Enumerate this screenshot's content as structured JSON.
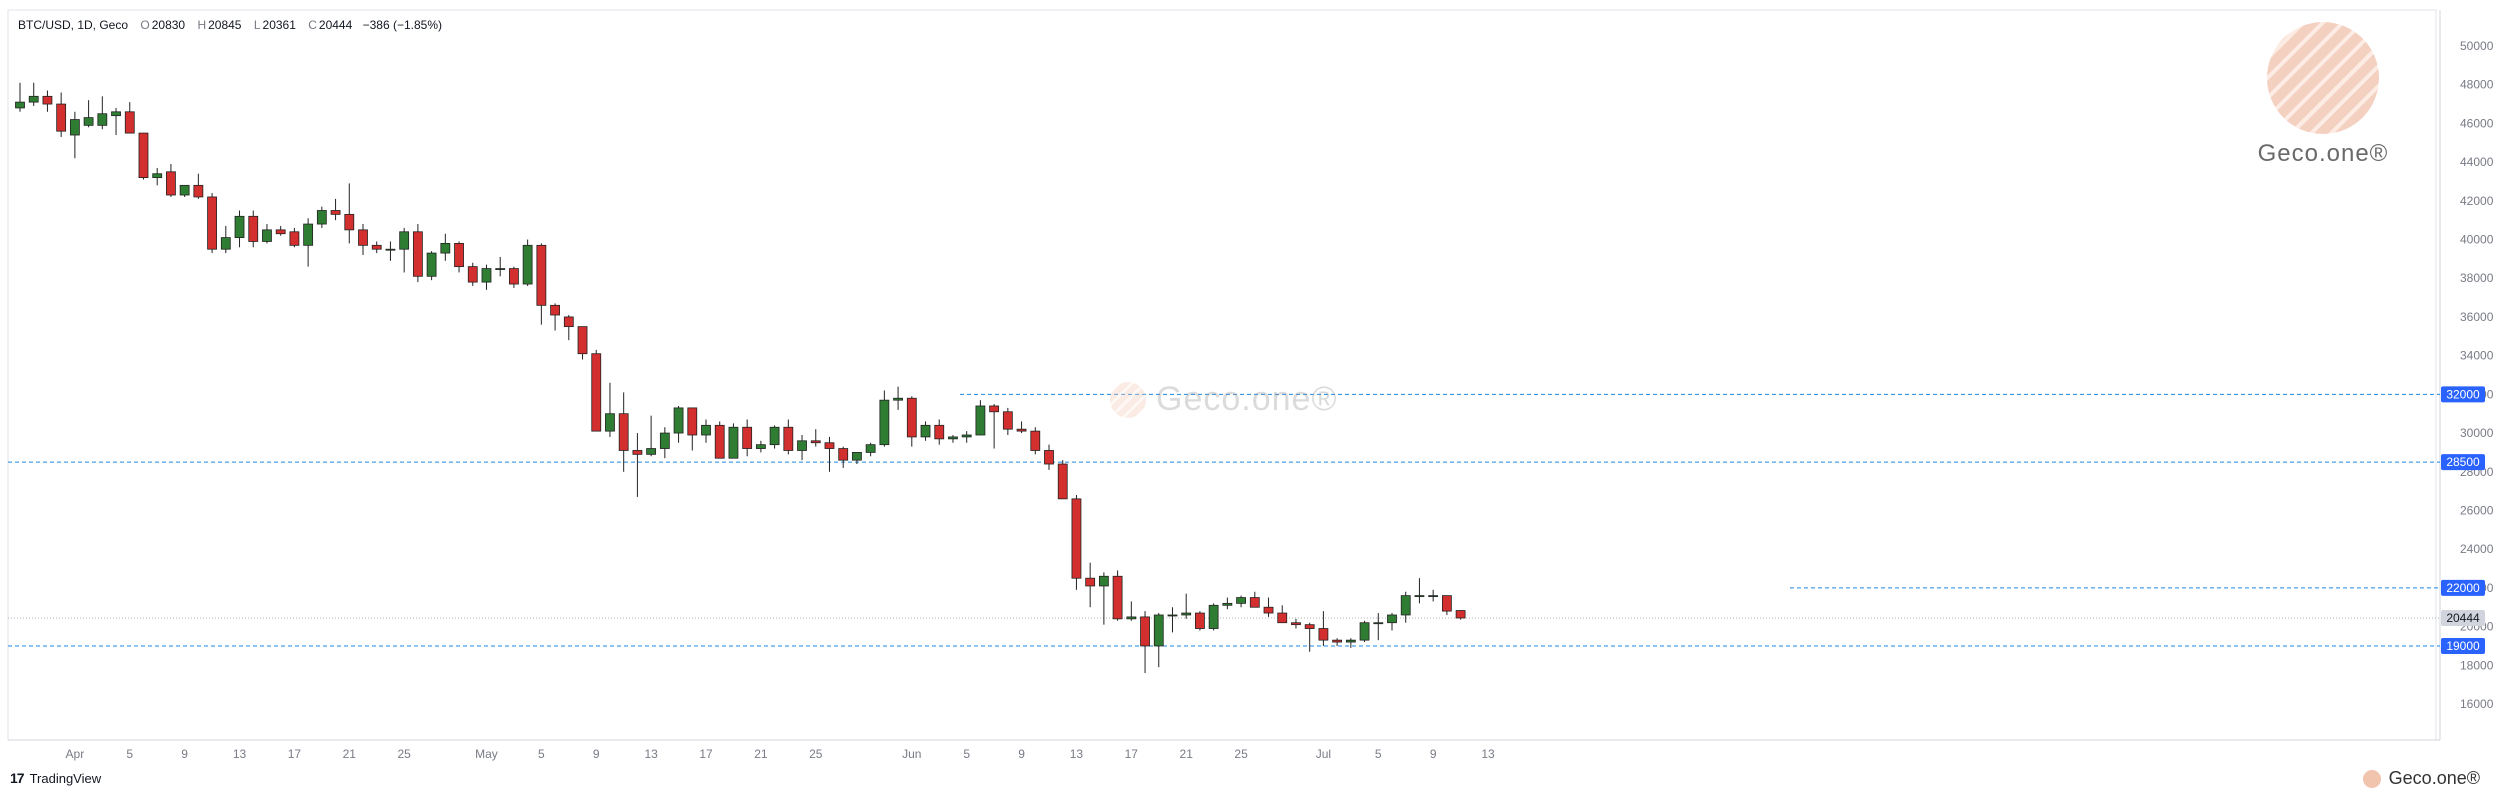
{
  "header": {
    "symbol": "BTC/USD, 1D, Geco",
    "o_label": "O",
    "o": "20830",
    "h_label": "H",
    "h": "20845",
    "l_label": "L",
    "l": "20361",
    "c_label": "C",
    "c": "20444",
    "change": "−386 (−1.85%)"
  },
  "footer": {
    "logo": "17",
    "label": "TradingView"
  },
  "watermark": {
    "brand": "Geco.one®",
    "center": "Geco.one®"
  },
  "colors": {
    "up": "#2e7d32",
    "down": "#d32f2f",
    "level_line": "#1e88e5",
    "level_badge": "#2962ff",
    "price_badge": "#d1d4dc"
  },
  "chart_data": {
    "type": "candlestick",
    "title": "BTC/USD, 1D, Geco",
    "y_range": [
      14000,
      51000
    ],
    "y_ticks": [
      16000,
      18000,
      20000,
      22000,
      24000,
      26000,
      28000,
      30000,
      32000,
      34000,
      36000,
      38000,
      40000,
      42000,
      44000,
      46000,
      48000,
      50000
    ],
    "x_labels": [
      {
        "date": "2022-04-01",
        "label": "Apr"
      },
      {
        "date": "2022-04-05",
        "label": "5"
      },
      {
        "date": "2022-04-09",
        "label": "9"
      },
      {
        "date": "2022-04-13",
        "label": "13"
      },
      {
        "date": "2022-04-17",
        "label": "17"
      },
      {
        "date": "2022-04-21",
        "label": "21"
      },
      {
        "date": "2022-04-25",
        "label": "25"
      },
      {
        "date": "2022-05-01",
        "label": "May"
      },
      {
        "date": "2022-05-05",
        "label": "5"
      },
      {
        "date": "2022-05-09",
        "label": "9"
      },
      {
        "date": "2022-05-13",
        "label": "13"
      },
      {
        "date": "2022-05-17",
        "label": "17"
      },
      {
        "date": "2022-05-21",
        "label": "21"
      },
      {
        "date": "2022-05-25",
        "label": "25"
      },
      {
        "date": "2022-06-01",
        "label": "Jun"
      },
      {
        "date": "2022-06-05",
        "label": "5"
      },
      {
        "date": "2022-06-09",
        "label": "9"
      },
      {
        "date": "2022-06-13",
        "label": "13"
      },
      {
        "date": "2022-06-17",
        "label": "17"
      },
      {
        "date": "2022-06-21",
        "label": "21"
      },
      {
        "date": "2022-06-25",
        "label": "25"
      },
      {
        "date": "2022-07-01",
        "label": "Jul"
      },
      {
        "date": "2022-07-05",
        "label": "5"
      },
      {
        "date": "2022-07-09",
        "label": "9"
      },
      {
        "date": "2022-07-13",
        "label": "13"
      }
    ],
    "levels": [
      32000,
      28500,
      22000,
      19000
    ],
    "last_price": 20444,
    "candles": [
      {
        "d": "2022-03-28",
        "o": 46800,
        "h": 48100,
        "l": 46600,
        "c": 47100
      },
      {
        "d": "2022-03-29",
        "o": 47100,
        "h": 48100,
        "l": 46900,
        "c": 47400
      },
      {
        "d": "2022-03-30",
        "o": 47400,
        "h": 47700,
        "l": 46600,
        "c": 47000
      },
      {
        "d": "2022-03-31",
        "o": 47000,
        "h": 47600,
        "l": 45300,
        "c": 45600
      },
      {
        "d": "2022-04-01",
        "o": 45400,
        "h": 46600,
        "l": 44200,
        "c": 46200
      },
      {
        "d": "2022-04-02",
        "o": 45900,
        "h": 47200,
        "l": 45800,
        "c": 46300
      },
      {
        "d": "2022-04-03",
        "o": 45900,
        "h": 47400,
        "l": 45700,
        "c": 46500
      },
      {
        "d": "2022-04-04",
        "o": 46400,
        "h": 46800,
        "l": 45400,
        "c": 46600
      },
      {
        "d": "2022-04-05",
        "o": 46600,
        "h": 47100,
        "l": 45500,
        "c": 45500
      },
      {
        "d": "2022-04-06",
        "o": 45500,
        "h": 45500,
        "l": 43100,
        "c": 43200
      },
      {
        "d": "2022-04-07",
        "o": 43200,
        "h": 43700,
        "l": 42800,
        "c": 43400
      },
      {
        "d": "2022-04-08",
        "o": 43500,
        "h": 43900,
        "l": 42200,
        "c": 42300
      },
      {
        "d": "2022-04-09",
        "o": 42300,
        "h": 42800,
        "l": 42200,
        "c": 42800
      },
      {
        "d": "2022-04-10",
        "o": 42800,
        "h": 43400,
        "l": 42100,
        "c": 42200
      },
      {
        "d": "2022-04-11",
        "o": 42200,
        "h": 42400,
        "l": 39300,
        "c": 39500
      },
      {
        "d": "2022-04-12",
        "o": 39500,
        "h": 40700,
        "l": 39300,
        "c": 40100
      },
      {
        "d": "2022-04-13",
        "o": 40100,
        "h": 41500,
        "l": 39600,
        "c": 41200
      },
      {
        "d": "2022-04-14",
        "o": 41200,
        "h": 41500,
        "l": 39600,
        "c": 39900
      },
      {
        "d": "2022-04-15",
        "o": 39900,
        "h": 40800,
        "l": 39800,
        "c": 40500
      },
      {
        "d": "2022-04-16",
        "o": 40500,
        "h": 40700,
        "l": 40200,
        "c": 40300
      },
      {
        "d": "2022-04-17",
        "o": 40400,
        "h": 40600,
        "l": 39600,
        "c": 39700
      },
      {
        "d": "2022-04-18",
        "o": 39700,
        "h": 41100,
        "l": 38600,
        "c": 40800
      },
      {
        "d": "2022-04-19",
        "o": 40800,
        "h": 41700,
        "l": 40600,
        "c": 41500
      },
      {
        "d": "2022-04-20",
        "o": 41500,
        "h": 42100,
        "l": 41000,
        "c": 41300
      },
      {
        "d": "2022-04-21",
        "o": 41300,
        "h": 42900,
        "l": 39800,
        "c": 40500
      },
      {
        "d": "2022-04-22",
        "o": 40500,
        "h": 40800,
        "l": 39200,
        "c": 39700
      },
      {
        "d": "2022-04-23",
        "o": 39700,
        "h": 39900,
        "l": 39300,
        "c": 39500
      },
      {
        "d": "2022-04-24",
        "o": 39500,
        "h": 39900,
        "l": 38900,
        "c": 39500
      },
      {
        "d": "2022-04-25",
        "o": 39500,
        "h": 40600,
        "l": 38300,
        "c": 40400
      },
      {
        "d": "2022-04-26",
        "o": 40400,
        "h": 40800,
        "l": 37800,
        "c": 38100
      },
      {
        "d": "2022-04-27",
        "o": 38100,
        "h": 39400,
        "l": 37900,
        "c": 39300
      },
      {
        "d": "2022-04-28",
        "o": 39300,
        "h": 40300,
        "l": 38900,
        "c": 39800
      },
      {
        "d": "2022-04-29",
        "o": 39800,
        "h": 39900,
        "l": 38300,
        "c": 38600
      },
      {
        "d": "2022-04-30",
        "o": 38600,
        "h": 38800,
        "l": 37600,
        "c": 37800
      },
      {
        "d": "2022-05-01",
        "o": 37800,
        "h": 38700,
        "l": 37400,
        "c": 38500
      },
      {
        "d": "2022-05-02",
        "o": 38500,
        "h": 39100,
        "l": 38100,
        "c": 38500
      },
      {
        "d": "2022-05-03",
        "o": 38500,
        "h": 38600,
        "l": 37500,
        "c": 37700
      },
      {
        "d": "2022-05-04",
        "o": 37700,
        "h": 40000,
        "l": 37600,
        "c": 39700
      },
      {
        "d": "2022-05-05",
        "o": 39700,
        "h": 39800,
        "l": 35600,
        "c": 36600
      },
      {
        "d": "2022-05-06",
        "o": 36600,
        "h": 36700,
        "l": 35300,
        "c": 36100
      },
      {
        "d": "2022-05-07",
        "o": 36000,
        "h": 36100,
        "l": 34800,
        "c": 35500
      },
      {
        "d": "2022-05-08",
        "o": 35500,
        "h": 35500,
        "l": 33800,
        "c": 34100
      },
      {
        "d": "2022-05-09",
        "o": 34100,
        "h": 34300,
        "l": 30100,
        "c": 30100
      },
      {
        "d": "2022-05-10",
        "o": 30100,
        "h": 32600,
        "l": 29800,
        "c": 31000
      },
      {
        "d": "2022-05-11",
        "o": 31000,
        "h": 32100,
        "l": 28000,
        "c": 29100
      },
      {
        "d": "2022-05-12",
        "o": 29100,
        "h": 30000,
        "l": 26700,
        "c": 28900
      },
      {
        "d": "2022-05-13",
        "o": 28900,
        "h": 30900,
        "l": 28800,
        "c": 29200
      },
      {
        "d": "2022-05-14",
        "o": 29200,
        "h": 30300,
        "l": 28700,
        "c": 30000
      },
      {
        "d": "2022-05-15",
        "o": 30000,
        "h": 31400,
        "l": 29500,
        "c": 31300
      },
      {
        "d": "2022-05-16",
        "o": 31300,
        "h": 31300,
        "l": 29100,
        "c": 29900
      },
      {
        "d": "2022-05-17",
        "o": 29900,
        "h": 30700,
        "l": 29500,
        "c": 30400
      },
      {
        "d": "2022-05-18",
        "o": 30400,
        "h": 30600,
        "l": 28700,
        "c": 28700
      },
      {
        "d": "2022-05-19",
        "o": 28700,
        "h": 30500,
        "l": 28700,
        "c": 30300
      },
      {
        "d": "2022-05-20",
        "o": 30300,
        "h": 30700,
        "l": 28800,
        "c": 29200
      },
      {
        "d": "2022-05-21",
        "o": 29200,
        "h": 29600,
        "l": 29000,
        "c": 29400
      },
      {
        "d": "2022-05-22",
        "o": 29400,
        "h": 30400,
        "l": 29200,
        "c": 30300
      },
      {
        "d": "2022-05-23",
        "o": 30300,
        "h": 30700,
        "l": 28900,
        "c": 29100
      },
      {
        "d": "2022-05-24",
        "o": 29100,
        "h": 29900,
        "l": 28600,
        "c": 29600
      },
      {
        "d": "2022-05-25",
        "o": 29600,
        "h": 30200,
        "l": 29300,
        "c": 29500
      },
      {
        "d": "2022-05-26",
        "o": 29500,
        "h": 29800,
        "l": 28000,
        "c": 29200
      },
      {
        "d": "2022-05-27",
        "o": 29200,
        "h": 29300,
        "l": 28200,
        "c": 28600
      },
      {
        "d": "2022-05-28",
        "o": 28600,
        "h": 29000,
        "l": 28400,
        "c": 29000
      },
      {
        "d": "2022-05-29",
        "o": 29000,
        "h": 29500,
        "l": 28800,
        "c": 29400
      },
      {
        "d": "2022-05-30",
        "o": 29400,
        "h": 32200,
        "l": 29300,
        "c": 31700
      },
      {
        "d": "2022-05-31",
        "o": 31700,
        "h": 32400,
        "l": 31200,
        "c": 31800
      },
      {
        "d": "2022-06-01",
        "o": 31800,
        "h": 31900,
        "l": 29300,
        "c": 29800
      },
      {
        "d": "2022-06-02",
        "o": 29800,
        "h": 30600,
        "l": 29600,
        "c": 30400
      },
      {
        "d": "2022-06-03",
        "o": 30400,
        "h": 30700,
        "l": 29400,
        "c": 29700
      },
      {
        "d": "2022-06-04",
        "o": 29700,
        "h": 29900,
        "l": 29500,
        "c": 29800
      },
      {
        "d": "2022-06-05",
        "o": 29800,
        "h": 30100,
        "l": 29500,
        "c": 29900
      },
      {
        "d": "2022-06-06",
        "o": 29900,
        "h": 31700,
        "l": 29900,
        "c": 31400
      },
      {
        "d": "2022-06-07",
        "o": 31400,
        "h": 31500,
        "l": 29200,
        "c": 31100
      },
      {
        "d": "2022-06-08",
        "o": 31100,
        "h": 31300,
        "l": 29900,
        "c": 30200
      },
      {
        "d": "2022-06-09",
        "o": 30200,
        "h": 30600,
        "l": 30000,
        "c": 30100
      },
      {
        "d": "2022-06-10",
        "o": 30100,
        "h": 30300,
        "l": 28900,
        "c": 29100
      },
      {
        "d": "2022-06-11",
        "o": 29100,
        "h": 29400,
        "l": 28100,
        "c": 28400
      },
      {
        "d": "2022-06-12",
        "o": 28400,
        "h": 28600,
        "l": 26600,
        "c": 26600
      },
      {
        "d": "2022-06-13",
        "o": 26600,
        "h": 26800,
        "l": 21900,
        "c": 22500
      },
      {
        "d": "2022-06-14",
        "o": 22500,
        "h": 23300,
        "l": 21000,
        "c": 22100
      },
      {
        "d": "2022-06-15",
        "o": 22100,
        "h": 22800,
        "l": 20100,
        "c": 22600
      },
      {
        "d": "2022-06-16",
        "o": 22600,
        "h": 22900,
        "l": 20300,
        "c": 20400
      },
      {
        "d": "2022-06-17",
        "o": 20400,
        "h": 21300,
        "l": 20300,
        "c": 20500
      },
      {
        "d": "2022-06-18",
        "o": 20500,
        "h": 20800,
        "l": 17600,
        "c": 19000
      },
      {
        "d": "2022-06-19",
        "o": 19000,
        "h": 20700,
        "l": 17900,
        "c": 20600
      },
      {
        "d": "2022-06-20",
        "o": 20600,
        "h": 21000,
        "l": 19700,
        "c": 20600
      },
      {
        "d": "2022-06-21",
        "o": 20600,
        "h": 21700,
        "l": 20400,
        "c": 20700
      },
      {
        "d": "2022-06-22",
        "o": 20700,
        "h": 20800,
        "l": 19800,
        "c": 19900
      },
      {
        "d": "2022-06-23",
        "o": 19900,
        "h": 21200,
        "l": 19800,
        "c": 21100
      },
      {
        "d": "2022-06-24",
        "o": 21100,
        "h": 21500,
        "l": 20900,
        "c": 21200
      },
      {
        "d": "2022-06-25",
        "o": 21200,
        "h": 21600,
        "l": 21000,
        "c": 21500
      },
      {
        "d": "2022-06-26",
        "o": 21500,
        "h": 21800,
        "l": 21000,
        "c": 21000
      },
      {
        "d": "2022-06-27",
        "o": 21000,
        "h": 21500,
        "l": 20500,
        "c": 20700
      },
      {
        "d": "2022-06-28",
        "o": 20700,
        "h": 21100,
        "l": 20200,
        "c": 20200
      },
      {
        "d": "2022-06-29",
        "o": 20200,
        "h": 20400,
        "l": 19900,
        "c": 20100
      },
      {
        "d": "2022-06-30",
        "o": 20100,
        "h": 20200,
        "l": 18700,
        "c": 19900
      },
      {
        "d": "2022-07-01",
        "o": 19900,
        "h": 20800,
        "l": 19000,
        "c": 19300
      },
      {
        "d": "2022-07-02",
        "o": 19300,
        "h": 19400,
        "l": 19000,
        "c": 19200
      },
      {
        "d": "2022-07-03",
        "o": 19200,
        "h": 19400,
        "l": 18900,
        "c": 19300
      },
      {
        "d": "2022-07-04",
        "o": 19300,
        "h": 20300,
        "l": 19200,
        "c": 20200
      },
      {
        "d": "2022-07-05",
        "o": 20200,
        "h": 20700,
        "l": 19300,
        "c": 20200
      },
      {
        "d": "2022-07-06",
        "o": 20200,
        "h": 20700,
        "l": 19800,
        "c": 20600
      },
      {
        "d": "2022-07-07",
        "o": 20600,
        "h": 21800,
        "l": 20200,
        "c": 21600
      },
      {
        "d": "2022-07-08",
        "o": 21600,
        "h": 22500,
        "l": 21200,
        "c": 21600
      },
      {
        "d": "2022-07-09",
        "o": 21600,
        "h": 21900,
        "l": 21300,
        "c": 21600
      },
      {
        "d": "2022-07-10",
        "o": 21600,
        "h": 21600,
        "l": 20600,
        "c": 20800
      },
      {
        "d": "2022-07-11",
        "o": 20830,
        "h": 20845,
        "l": 20361,
        "c": 20444
      }
    ]
  }
}
